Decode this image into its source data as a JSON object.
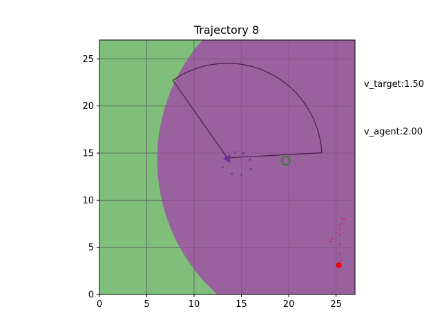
{
  "chart_data": {
    "type": "scatter",
    "title": "Trajectory 8",
    "xlabel": "",
    "ylabel": "",
    "xlim": [
      0,
      27
    ],
    "ylim": [
      0,
      27
    ],
    "x_ticks": [
      0,
      5,
      10,
      15,
      20,
      25
    ],
    "y_ticks": [
      0,
      5,
      10,
      15,
      20,
      25
    ],
    "grid": true,
    "background_color": "#7fbf7b",
    "grid_color": "#4e8a4c",
    "annotations": [
      {
        "label": "v_target",
        "text": "v_target:1.50"
      },
      {
        "label": "v_agent",
        "text": "v_agent:2.00"
      }
    ],
    "regions": {
      "big_circle": {
        "center": [
          25.3,
          14.3
        ],
        "radius": 19.2,
        "color": "#9b5c9f"
      },
      "sector": {
        "center": [
          13.5,
          14.5
        ],
        "radius": 10.0,
        "start_deg": 3,
        "end_deg": 125,
        "stroke": "#4a1a4a"
      }
    },
    "agent": {
      "x": 13.5,
      "y": 14.4,
      "marker": "triangle-left",
      "color": "#6a2c9e"
    },
    "target_marker": {
      "x": 19.7,
      "y": 14.2,
      "color": "#1f8a1f"
    },
    "red_point": {
      "x": 25.3,
      "y": 3.1,
      "color": "#ff0000"
    },
    "agent_trail": {
      "color": "#6a2c9e",
      "points": [
        [
          14.3,
          15.1
        ],
        [
          15.2,
          15.0
        ],
        [
          15.9,
          14.3
        ],
        [
          13.0,
          13.5
        ],
        [
          14.0,
          12.8
        ],
        [
          15.0,
          12.7
        ],
        [
          16.0,
          13.3
        ]
      ]
    },
    "target_trail": {
      "color": "#c0306a",
      "points": [
        [
          25.7,
          8.0
        ],
        [
          25.9,
          8.0
        ],
        [
          25.6,
          7.5
        ],
        [
          25.4,
          7.3
        ],
        [
          25.4,
          6.9
        ],
        [
          25.0,
          6.6
        ],
        [
          25.4,
          6.3
        ],
        [
          24.6,
          5.9
        ],
        [
          24.4,
          5.6
        ],
        [
          25.4,
          5.3
        ],
        [
          25.4,
          4.3
        ],
        [
          25.5,
          3.6
        ]
      ]
    }
  }
}
